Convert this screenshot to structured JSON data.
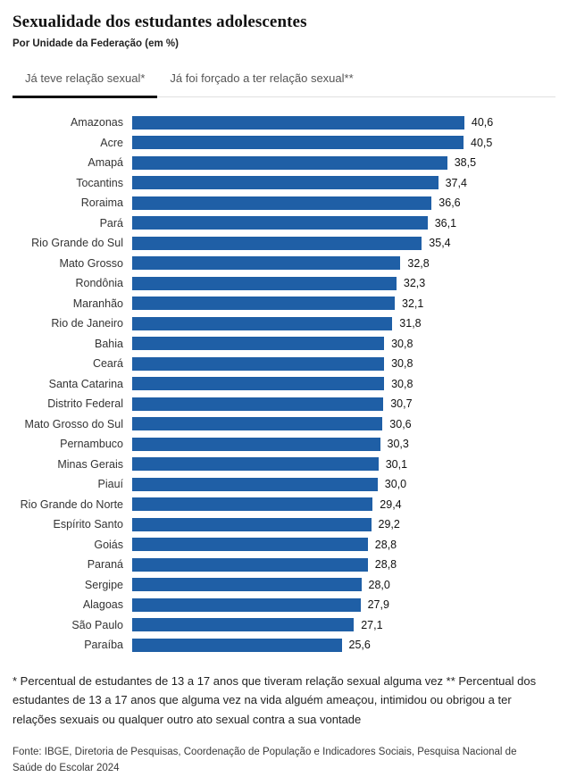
{
  "header": {
    "title": "Sexualidade dos estudantes adolescentes",
    "subtitle": "Por Unidade da Federação (em %)"
  },
  "tabs": [
    {
      "label": "Já teve relação sexual*",
      "active": true
    },
    {
      "label": "Já foi forçado a ter relação sexual**",
      "active": false
    }
  ],
  "chart_data": {
    "type": "bar",
    "orientation": "horizontal",
    "title": "Sexualidade dos estudantes adolescentes",
    "subtitle": "Por Unidade da Federação (em %)",
    "unit": "%",
    "xlim": [
      0,
      42
    ],
    "grid": false,
    "legend": "none",
    "bar_color": "#1f5fa6",
    "categories": [
      "Amazonas",
      "Acre",
      "Amapá",
      "Tocantins",
      "Roraima",
      "Pará",
      "Rio Grande do Sul",
      "Mato Grosso",
      "Rondônia",
      "Maranhão",
      "Rio de Janeiro",
      "Bahia",
      "Ceará",
      "Santa Catarina",
      "Distrito Federal",
      "Mato Grosso do Sul",
      "Pernambuco",
      "Minas Gerais",
      "Piauí",
      "Rio Grande do Norte",
      "Espírito Santo",
      "Goiás",
      "Paraná",
      "Sergipe",
      "Alagoas",
      "São Paulo",
      "Paraíba"
    ],
    "values": [
      40.6,
      40.5,
      38.5,
      37.4,
      36.6,
      36.1,
      35.4,
      32.8,
      32.3,
      32.1,
      31.8,
      30.8,
      30.8,
      30.8,
      30.7,
      30.6,
      30.3,
      30.1,
      30.0,
      29.4,
      29.2,
      28.8,
      28.8,
      28.0,
      27.9,
      27.1,
      25.6
    ],
    "value_labels": [
      "40,6",
      "40,5",
      "38,5",
      "37,4",
      "36,6",
      "36,1",
      "35,4",
      "32,8",
      "32,3",
      "32,1",
      "31,8",
      "30,8",
      "30,8",
      "30,8",
      "30,7",
      "30,6",
      "30,3",
      "30,1",
      "30,0",
      "29,4",
      "29,2",
      "28,8",
      "28,8",
      "28,0",
      "27,9",
      "27,1",
      "25,6"
    ]
  },
  "footnote": "* Percentual de estudantes de 13 a 17 anos que tiveram relação sexual alguma vez ** Percentual dos estudantes de 13 a 17 anos que alguma vez na vida alguém ameaçou, intimidou ou obrigou a ter relações sexuais ou qualquer outro ato sexual contra a sua vontade",
  "source": "Fonte: IBGE, Diretoria de Pesquisas, Coordenação de População e Indicadores Sociais, Pesquisa Nacional de Saúde do Escolar 2024"
}
